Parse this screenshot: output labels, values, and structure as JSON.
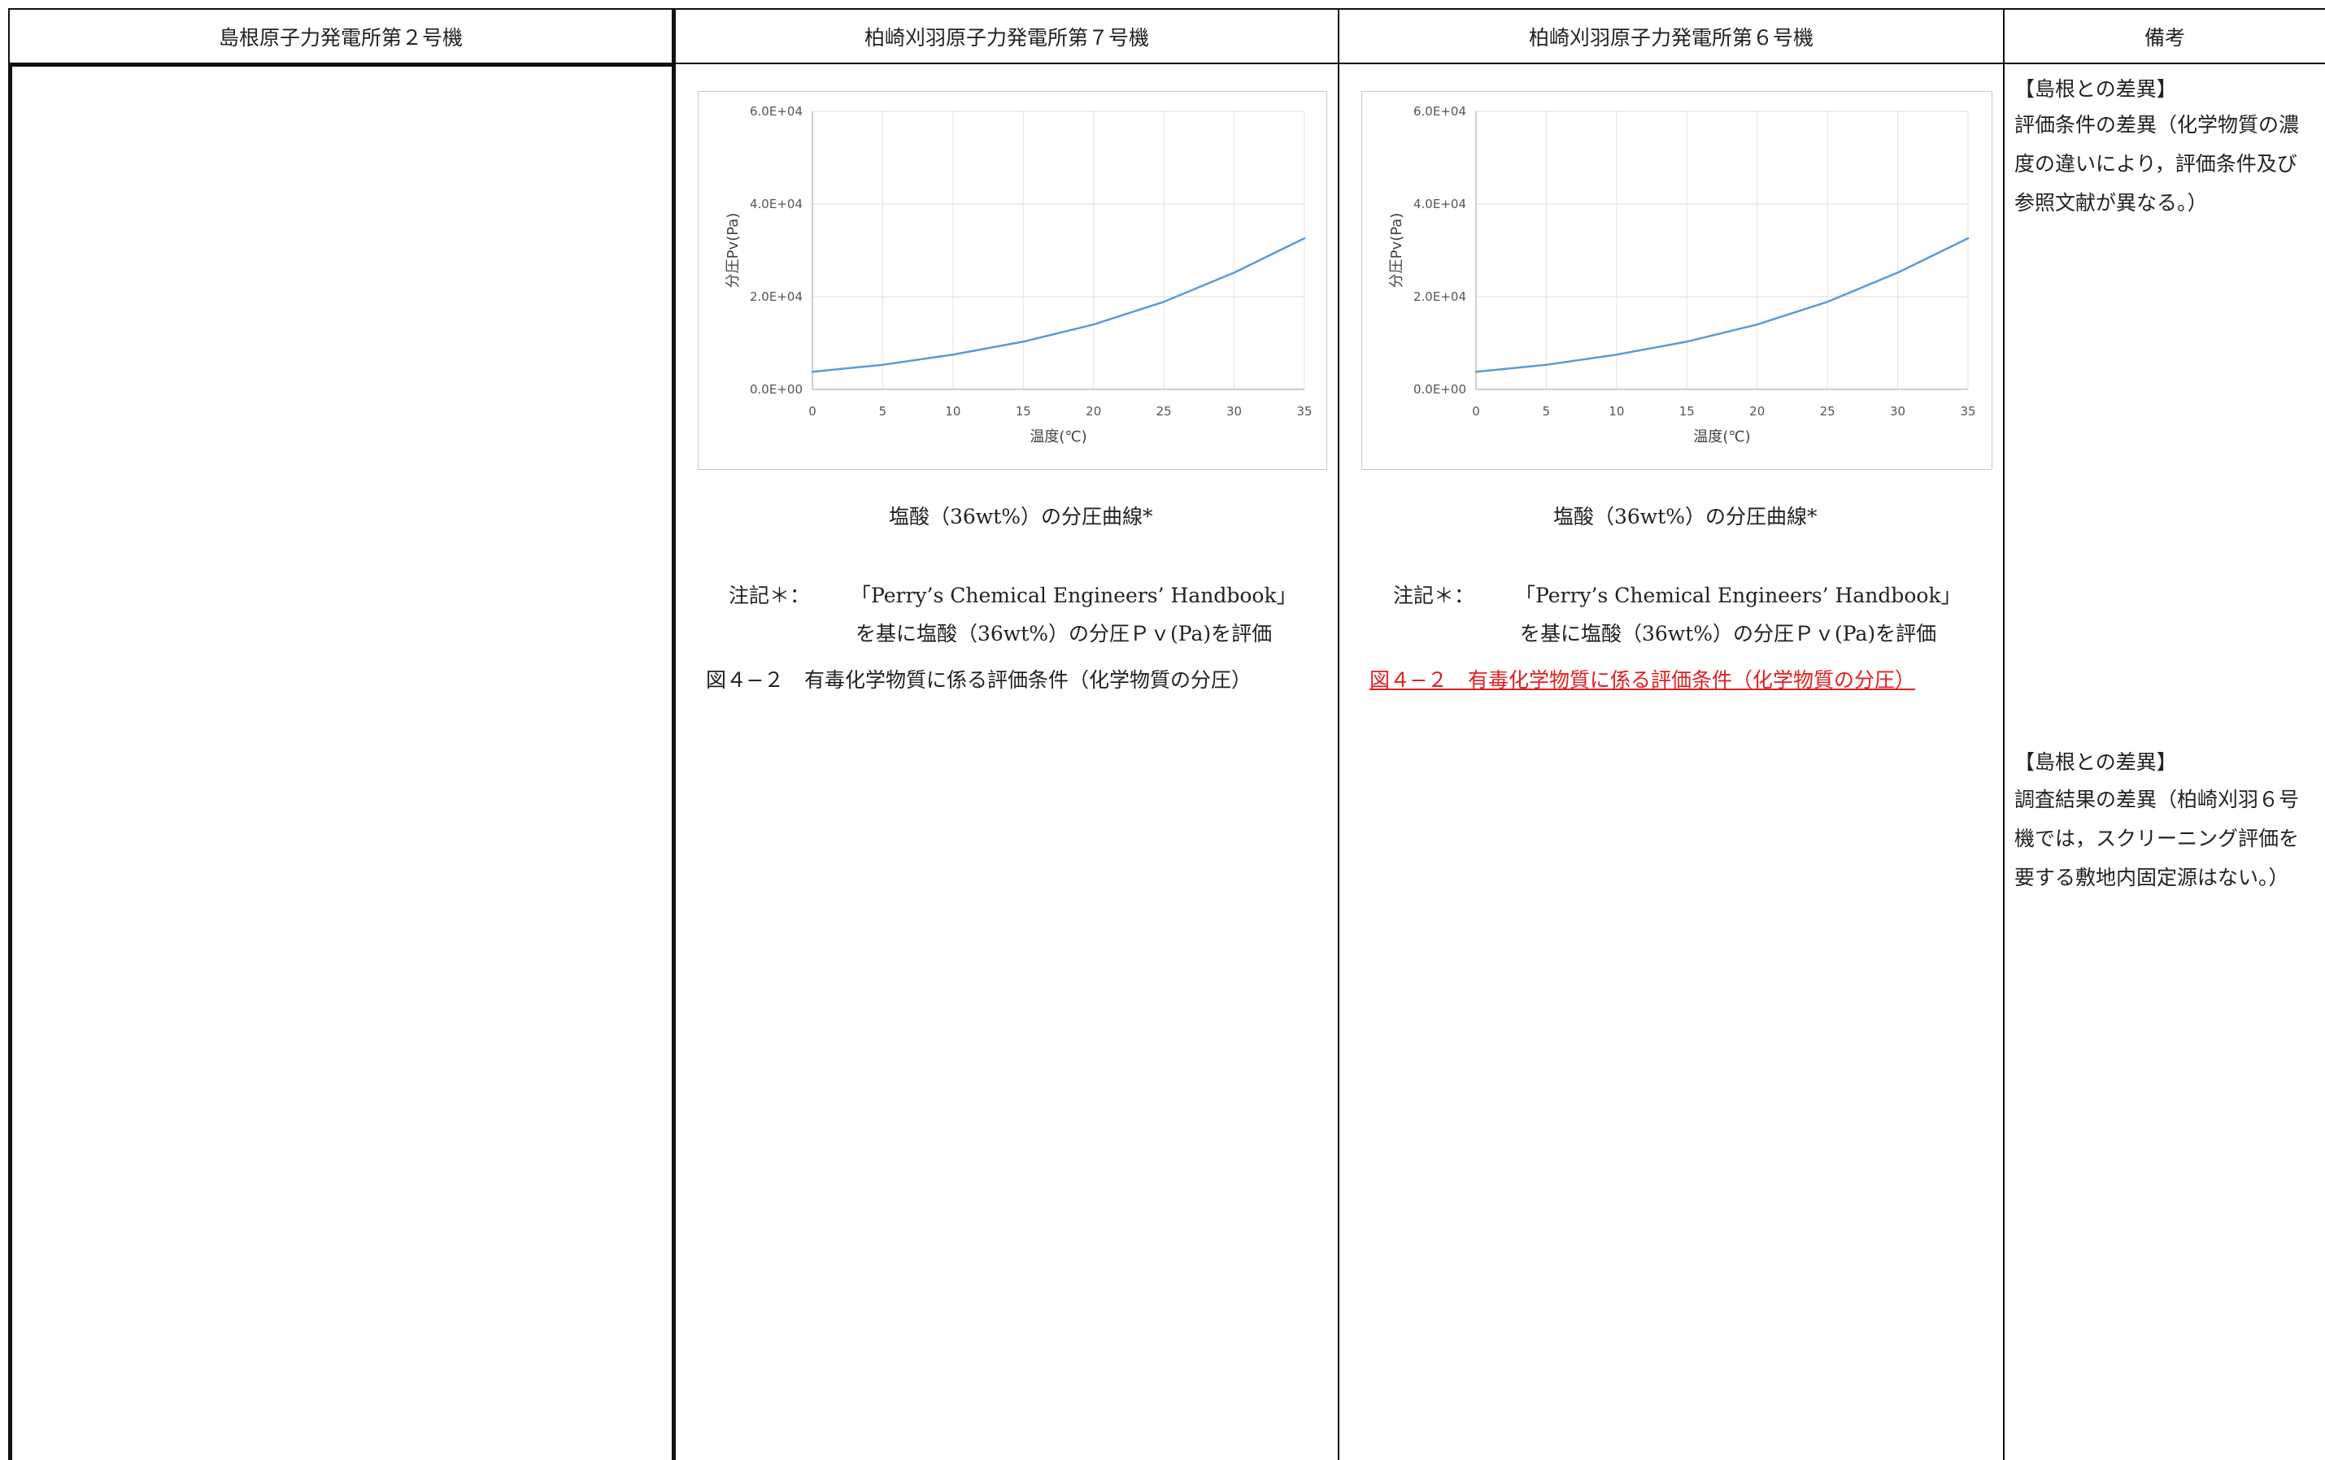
{
  "headers": {
    "col1": "島根原子力発電所第２号機",
    "col2": "柏崎刈羽原子力発電所第７号機",
    "col3": "柏崎刈羽原子力発電所第６号機",
    "col4": "備考"
  },
  "col2": {
    "caption": "塩酸（36wt%）の分圧曲線*",
    "note_label": "注記＊：",
    "note_line1": "「Perry’s Chemical Engineers’ Handbook」",
    "note_line2": "を基に塩酸（36wt%）の分圧Ｐｖ(Pa)を評価",
    "figure_title": "図４−２　有毒化学物質に係る評価条件（化学物質の分圧）"
  },
  "col3": {
    "caption": "塩酸（36wt%）の分圧曲線*",
    "note_label": "注記＊：",
    "note_line1": "「Perry’s Chemical Engineers’ Handbook」",
    "note_line2": "を基に塩酸（36wt%）の分圧Ｐｖ(Pa)を評価",
    "figure_title": "図４−２　有毒化学物質に係る評価条件（化学物質の分圧）",
    "figure_title_color": "#e02020"
  },
  "remarks": {
    "block1": {
      "heading": "【島根との差異】",
      "line1": "評価条件の差異（化学物質の濃",
      "line2": "度の違いにより，評価条件及び",
      "line3": "参照文献が異なる。）"
    },
    "block2": {
      "heading": "【島根との差異】",
      "line1": "調査結果の差異（柏崎刈羽６号",
      "line2": "機では，スクリーニング評価を",
      "line3": "要する敷地内固定源はない。）"
    }
  },
  "chart_data": [
    {
      "type": "line",
      "xlabel": "温度(℃)",
      "ylabel": "分圧Pv(Pa)",
      "xlim": [
        0,
        35
      ],
      "ylim": [
        0,
        60000
      ],
      "xticks": [
        0,
        5,
        10,
        15,
        20,
        25,
        30,
        35
      ],
      "yticks": [
        0,
        20000,
        40000,
        60000
      ],
      "ytick_labels": [
        "0.0E+00",
        "2.0E+04",
        "4.0E+04",
        "6.0E+04"
      ],
      "grid": true,
      "line_color": "#5b9bd5",
      "series": [
        {
          "x": [
            0,
            5,
            10,
            15,
            20,
            25,
            30,
            35
          ],
          "y": [
            3800,
            5300,
            7500,
            10300,
            14000,
            18900,
            25200,
            32600
          ]
        }
      ]
    },
    {
      "type": "line",
      "xlabel": "温度(℃)",
      "ylabel": "分圧Pv(Pa)",
      "xlim": [
        0,
        35
      ],
      "ylim": [
        0,
        60000
      ],
      "xticks": [
        0,
        5,
        10,
        15,
        20,
        25,
        30,
        35
      ],
      "yticks": [
        0,
        20000,
        40000,
        60000
      ],
      "ytick_labels": [
        "0.0E+00",
        "2.0E+04",
        "4.0E+04",
        "6.0E+04"
      ],
      "grid": true,
      "line_color": "#5b9bd5",
      "series": [
        {
          "x": [
            0,
            5,
            10,
            15,
            20,
            25,
            30,
            35
          ],
          "y": [
            3800,
            5300,
            7500,
            10300,
            14000,
            18900,
            25200,
            32600
          ]
        }
      ]
    }
  ]
}
